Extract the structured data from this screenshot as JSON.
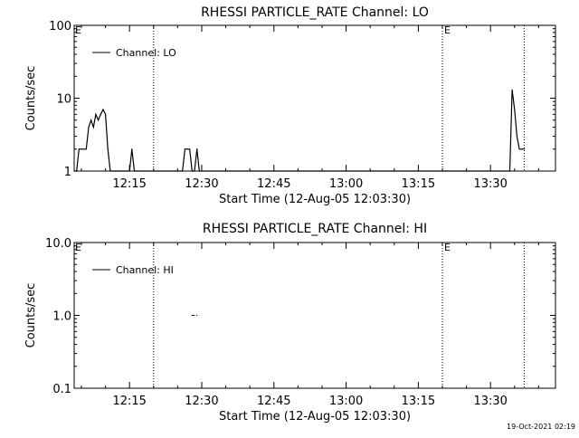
{
  "chart_data": [
    {
      "type": "line",
      "title": "RHESSI PARTICLE_RATE Channel: LO",
      "xlabel": "Start Time (12-Aug-05 12:03:30)",
      "ylabel": "Counts/sec",
      "yscale": "log",
      "ylim": [
        1,
        100
      ],
      "yticks": [
        "1",
        "10",
        "100"
      ],
      "xlim": [
        "12:03:30",
        "13:43:30"
      ],
      "xticks": [
        "12:15",
        "12:30",
        "12:45",
        "13:00",
        "13:15",
        "13:30"
      ],
      "legend": "top-left",
      "event_markers": [
        {
          "time": "12:20:00",
          "style": "dotted",
          "label": ""
        },
        {
          "time": "13:20:00",
          "style": "dotted",
          "label": "E"
        },
        {
          "time": "13:37:00",
          "style": "dotted",
          "label": ""
        }
      ],
      "start_marker_label": "E",
      "series": [
        {
          "name": "Channel: LO",
          "x": [
            "12:03:30",
            "12:04:00",
            "12:04:30",
            "12:05:00",
            "12:05:30",
            "12:06:00",
            "12:06:30",
            "12:07:00",
            "12:07:30",
            "12:08:00",
            "12:08:30",
            "12:09:00",
            "12:09:30",
            "12:10:00",
            "12:10:30",
            "12:11:00",
            "12:11:30",
            "12:12:00",
            "12:12:30",
            "12:13:00",
            "12:13:30",
            "12:14:00",
            "12:15:00",
            "12:15:30",
            "12:16:00",
            "12:16:30",
            "12:17:00",
            "12:26:00",
            "12:26:30",
            "12:27:00",
            "12:27:30",
            "12:28:00",
            "12:28:30",
            "12:29:00",
            "12:29:30",
            "13:34:00",
            "13:34:30",
            "13:35:00",
            "13:35:30",
            "13:36:00",
            "13:36:30",
            "13:37:00"
          ],
          "y": [
            1,
            1,
            2,
            2,
            2,
            2,
            4,
            5,
            4,
            6,
            5,
            6,
            7,
            6,
            2,
            1,
            1,
            1,
            1,
            1,
            1,
            1,
            1,
            2,
            1,
            1,
            1,
            1,
            2,
            2,
            2,
            1,
            1,
            2,
            1,
            1,
            13,
            7,
            3,
            2,
            2,
            2
          ]
        }
      ]
    },
    {
      "type": "line",
      "title": "RHESSI PARTICLE_RATE Channel: HI",
      "xlabel": "Start Time (12-Aug-05 12:03:30)",
      "ylabel": "Counts/sec",
      "yscale": "log",
      "ylim": [
        0.1,
        10
      ],
      "yticks": [
        "0.1",
        "1.0",
        "10.0"
      ],
      "xlim": [
        "12:03:30",
        "13:43:30"
      ],
      "xticks": [
        "12:15",
        "12:30",
        "12:45",
        "13:00",
        "13:15",
        "13:30"
      ],
      "legend": "top-left",
      "event_markers": [
        {
          "time": "12:20:00",
          "style": "dotted",
          "label": ""
        },
        {
          "time": "13:20:00",
          "style": "dotted",
          "label": "E"
        },
        {
          "time": "13:37:00",
          "style": "dotted",
          "label": ""
        }
      ],
      "start_marker_label": "E",
      "series": [
        {
          "name": "Channel: HI",
          "x": [
            "12:28:00",
            "12:29:00"
          ],
          "y": [
            1,
            1
          ]
        }
      ]
    }
  ],
  "footer": {
    "timestamp": "19-Oct-2021 02:19"
  }
}
